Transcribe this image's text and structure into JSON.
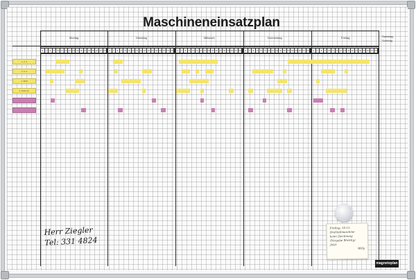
{
  "board": {
    "title": "Maschineneinsatzplan",
    "days": [
      "Montag",
      "Dienstag",
      "Mittwoch",
      "Donnerstag",
      "Freitag"
    ],
    "weekend_labels": [
      "Samstag",
      "Sonntag"
    ],
    "hours": [
      "6",
      "7",
      "8",
      "9",
      "10",
      "11",
      "12",
      "13",
      "14",
      "15",
      "16",
      "17",
      "18",
      "19",
      "20",
      "21",
      "22"
    ],
    "machine_labels": [
      "1, 2, 3",
      "4, 5, 6",
      "1. MaP",
      "2. Brak-Z4.",
      "",
      "",
      ""
    ],
    "handwritten_note": [
      "Herr Ziegler",
      "Tel: 331 4824"
    ],
    "note_card": [
      "Freitag, 10.11.",
      "Drehteilmaschine",
      "kann Zeichnung",
      "(Vorgabe Wichtig)",
      "Jetzt",
      "Willy"
    ],
    "brand": "magnetoplan",
    "colors": {
      "yellow": "#f4e46a",
      "pink": "#c87fb2",
      "frame": "#cfd2d6",
      "grid": "#9a9a9a"
    }
  }
}
